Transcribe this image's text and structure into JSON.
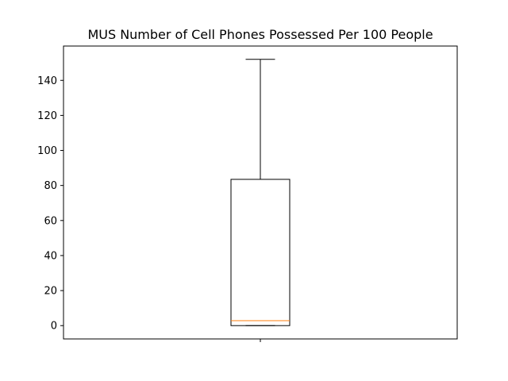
{
  "chart_data": {
    "type": "box",
    "title": "MUS Number of Cell Phones Possessed Per 100 People",
    "xlabel": "",
    "ylabel": "",
    "categories": [
      ""
    ],
    "ylim": [
      -7.6,
      159.6
    ],
    "yticks": [
      0,
      20,
      40,
      60,
      80,
      100,
      120,
      140
    ],
    "grid": false,
    "box": {
      "min": 0,
      "q1": 0,
      "median": 2.8,
      "q3": 83.5,
      "max": 152
    },
    "colors": {
      "box": "#000000",
      "median": "#ff7f0e",
      "axes": "#000000",
      "background": "#ffffff"
    }
  }
}
